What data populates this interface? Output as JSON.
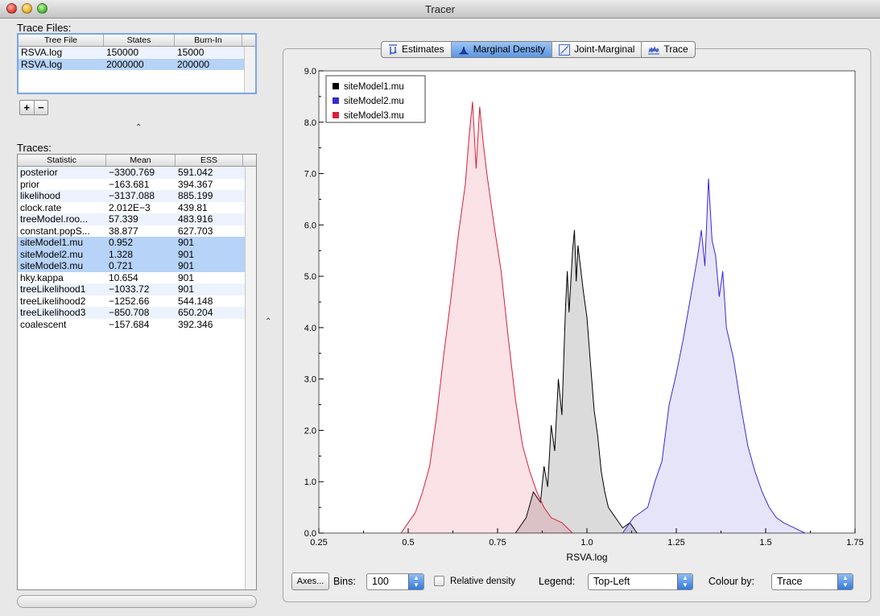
{
  "window": {
    "title": "Tracer"
  },
  "trace_files": {
    "label": "Trace Files:",
    "columns": [
      "Tree File",
      "States",
      "Burn-In"
    ],
    "rows": [
      {
        "file": "RSVA.log",
        "states": "150000",
        "burnin": "15000"
      },
      {
        "file": "RSVA.log",
        "states": "2000000",
        "burnin": "200000"
      }
    ],
    "add_label": "+",
    "remove_label": "−"
  },
  "traces": {
    "label": "Traces:",
    "columns": [
      "Statistic",
      "Mean",
      "ESS"
    ],
    "rows": [
      {
        "stat": "posterior",
        "mean": "−3300.769",
        "ess": "591.042"
      },
      {
        "stat": "prior",
        "mean": "−163.681",
        "ess": "394.367"
      },
      {
        "stat": "likelihood",
        "mean": "−3137.088",
        "ess": "885.199"
      },
      {
        "stat": "clock.rate",
        "mean": "2.012E−3",
        "ess": "439.81"
      },
      {
        "stat": "treeModel.roo...",
        "mean": "57.339",
        "ess": "483.916"
      },
      {
        "stat": "constant.popS...",
        "mean": "38.877",
        "ess": "627.703"
      },
      {
        "stat": "siteModel1.mu",
        "mean": "0.952",
        "ess": "901"
      },
      {
        "stat": "siteModel2.mu",
        "mean": "1.328",
        "ess": "901"
      },
      {
        "stat": "siteModel3.mu",
        "mean": "0.721",
        "ess": "901"
      },
      {
        "stat": "hky.kappa",
        "mean": "10.654",
        "ess": "901"
      },
      {
        "stat": "treeLikelihood1",
        "mean": "−1033.72",
        "ess": "901"
      },
      {
        "stat": "treeLikelihood2",
        "mean": "−1252.66",
        "ess": "544.148"
      },
      {
        "stat": "treeLikelihood3",
        "mean": "−850.708",
        "ess": "650.204"
      },
      {
        "stat": "coalescent",
        "mean": "−157.684",
        "ess": "392.346"
      }
    ],
    "selected": [
      6,
      7,
      8
    ]
  },
  "tabs": [
    {
      "label": "Estimates",
      "icon": "mu-icon"
    },
    {
      "label": "Marginal Density",
      "icon": "density-icon"
    },
    {
      "label": "Joint-Marginal",
      "icon": "joint-marginal-icon"
    },
    {
      "label": "Trace",
      "icon": "trace-icon"
    }
  ],
  "active_tab": 1,
  "controls": {
    "axes_label": "Axes...",
    "bins_label": "Bins:",
    "bins_value": "100",
    "relative_density_label": "Relative density",
    "relative_density_checked": false,
    "legend_label": "Legend:",
    "legend_value": "Top-Left",
    "colour_label": "Colour by:",
    "colour_value": "Trace"
  },
  "chart_data": {
    "type": "area",
    "xlabel": "RSVA.log",
    "ylabel": "",
    "xlim": [
      0.25,
      1.75
    ],
    "ylim": [
      0,
      9
    ],
    "xticks": [
      "0.25",
      "0.5",
      "0.75",
      "1.0",
      "1.25",
      "1.5",
      "1.75"
    ],
    "xtick_values": [
      0.25,
      0.5,
      0.75,
      1.0,
      1.25,
      1.5,
      1.75
    ],
    "yticks": [
      "0.0",
      "1.0",
      "2.0",
      "3.0",
      "4.0",
      "5.0",
      "6.0",
      "7.0",
      "8.0",
      "9.0"
    ],
    "ytick_values": [
      0,
      1,
      2,
      3,
      4,
      5,
      6,
      7,
      8,
      9
    ],
    "legend_position": "top-left",
    "series": [
      {
        "name": "siteModel1.mu",
        "color": "#000000",
        "fill": "rgba(0,0,0,0.14)",
        "points": [
          [
            0.8,
            0
          ],
          [
            0.83,
            0.3
          ],
          [
            0.85,
            0.8
          ],
          [
            0.87,
            0.6
          ],
          [
            0.88,
            1.3
          ],
          [
            0.89,
            0.9
          ],
          [
            0.9,
            2.1
          ],
          [
            0.91,
            1.6
          ],
          [
            0.92,
            3.0
          ],
          [
            0.93,
            2.3
          ],
          [
            0.94,
            4.4
          ],
          [
            0.945,
            5.1
          ],
          [
            0.95,
            4.3
          ],
          [
            0.96,
            5.5
          ],
          [
            0.965,
            5.9
          ],
          [
            0.97,
            4.9
          ],
          [
            0.975,
            5.6
          ],
          [
            0.98,
            5.3
          ],
          [
            0.99,
            4.7
          ],
          [
            1.0,
            4.2
          ],
          [
            1.01,
            3.3
          ],
          [
            1.02,
            2.4
          ],
          [
            1.03,
            1.9
          ],
          [
            1.04,
            1.2
          ],
          [
            1.05,
            0.8
          ],
          [
            1.06,
            0.5
          ],
          [
            1.08,
            0.3
          ],
          [
            1.1,
            0.1
          ],
          [
            1.12,
            0.2
          ],
          [
            1.14,
            0
          ]
        ]
      },
      {
        "name": "siteModel2.mu",
        "color": "#3a2bd1",
        "fill": "rgba(58,43,209,0.13)",
        "points": [
          [
            1.1,
            0
          ],
          [
            1.13,
            0.3
          ],
          [
            1.15,
            0.4
          ],
          [
            1.17,
            0.5
          ],
          [
            1.19,
            1.0
          ],
          [
            1.21,
            1.4
          ],
          [
            1.23,
            2.5
          ],
          [
            1.25,
            3.1
          ],
          [
            1.27,
            3.8
          ],
          [
            1.29,
            4.6
          ],
          [
            1.31,
            5.4
          ],
          [
            1.32,
            5.9
          ],
          [
            1.33,
            5.2
          ],
          [
            1.34,
            6.9
          ],
          [
            1.35,
            5.7
          ],
          [
            1.36,
            5.4
          ],
          [
            1.37,
            4.6
          ],
          [
            1.38,
            5.1
          ],
          [
            1.39,
            4.0
          ],
          [
            1.41,
            3.4
          ],
          [
            1.43,
            2.5
          ],
          [
            1.45,
            1.7
          ],
          [
            1.47,
            1.2
          ],
          [
            1.49,
            0.8
          ],
          [
            1.51,
            0.5
          ],
          [
            1.53,
            0.3
          ],
          [
            1.55,
            0.2
          ],
          [
            1.58,
            0.1
          ],
          [
            1.61,
            0
          ]
        ]
      },
      {
        "name": "siteModel3.mu",
        "color": "#d8203a",
        "fill": "rgba(216,32,58,0.13)",
        "points": [
          [
            0.48,
            0
          ],
          [
            0.5,
            0.2
          ],
          [
            0.52,
            0.4
          ],
          [
            0.54,
            0.8
          ],
          [
            0.56,
            1.3
          ],
          [
            0.58,
            2.3
          ],
          [
            0.6,
            3.5
          ],
          [
            0.62,
            4.6
          ],
          [
            0.64,
            5.8
          ],
          [
            0.66,
            6.8
          ],
          [
            0.67,
            7.7
          ],
          [
            0.68,
            8.4
          ],
          [
            0.69,
            7.1
          ],
          [
            0.7,
            8.3
          ],
          [
            0.71,
            7.6
          ],
          [
            0.72,
            7.0
          ],
          [
            0.74,
            6.0
          ],
          [
            0.76,
            5.1
          ],
          [
            0.78,
            3.8
          ],
          [
            0.8,
            2.6
          ],
          [
            0.82,
            1.7
          ],
          [
            0.84,
            1.2
          ],
          [
            0.86,
            0.8
          ],
          [
            0.88,
            0.5
          ],
          [
            0.9,
            0.3
          ],
          [
            0.93,
            0.2
          ],
          [
            0.96,
            0
          ]
        ]
      }
    ]
  }
}
